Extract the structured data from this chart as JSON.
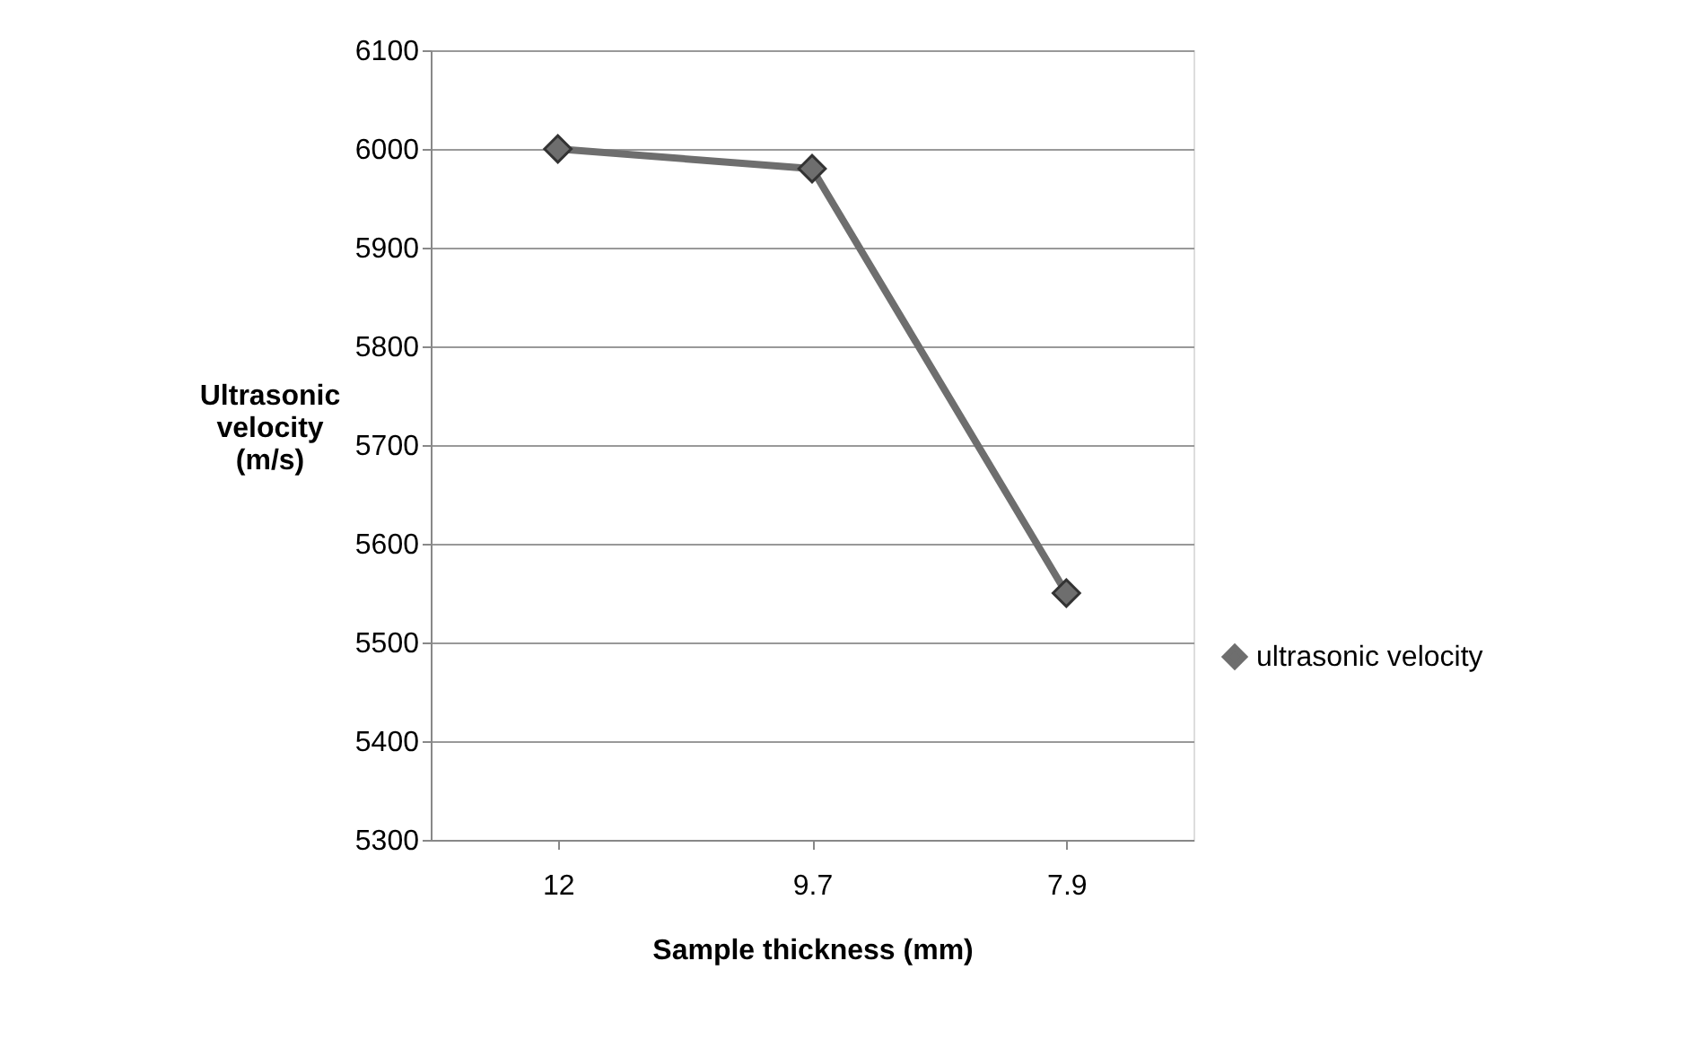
{
  "chart_data": {
    "type": "line",
    "xlabel": "Sample thickness (mm)",
    "ylabel": "Ultrasonic velocity (m/s)",
    "categories": [
      "12",
      "9.7",
      "7.9"
    ],
    "series": [
      {
        "name": "ultrasonic velocity",
        "color": "#6e6e6e",
        "values": [
          6000,
          5980,
          5550
        ]
      }
    ],
    "ylim": [
      5300,
      6100
    ],
    "yticks": [
      5300,
      5400,
      5500,
      5600,
      5700,
      5800,
      5900,
      6000,
      6100
    ],
    "grid": "y",
    "legend": "right",
    "marker": "diamond",
    "line_style": "solid"
  }
}
